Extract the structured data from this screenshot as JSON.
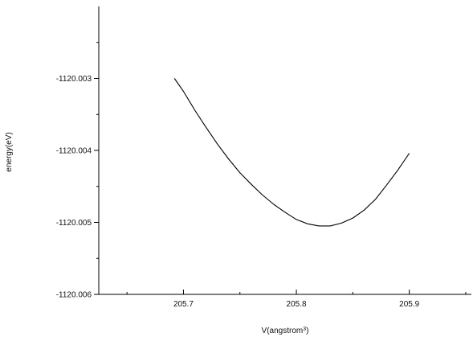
{
  "chart_data": {
    "type": "line",
    "xlabel": "V(angstrom",
    "xlabel_superscript": "3",
    "xlabel_suffix": ")",
    "ylabel": "energy(eV)",
    "xlim": [
      205.625,
      205.955
    ],
    "ylim": [
      -1120.006,
      -1120.002
    ],
    "x_ticks": [
      205.7,
      205.8,
      205.9
    ],
    "x_tick_labels": [
      "205.7",
      "205.8",
      "205.9"
    ],
    "y_ticks": [
      -1120.003,
      -1120.004,
      -1120.005,
      -1120.006
    ],
    "y_tick_labels": [
      "-1120.003",
      "-1120.004",
      "-1120.005",
      "-1120.006"
    ],
    "grid": false,
    "series": [
      {
        "color": "#000000",
        "x": [
          205.692,
          205.7,
          205.71,
          205.72,
          205.73,
          205.74,
          205.75,
          205.76,
          205.77,
          205.78,
          205.79,
          205.8,
          205.81,
          205.82,
          205.83,
          205.84,
          205.85,
          205.86,
          205.87,
          205.88,
          205.89,
          205.9
        ],
        "y": [
          -1120.003,
          -1120.00318,
          -1120.00344,
          -1120.00368,
          -1120.00391,
          -1120.00412,
          -1120.00431,
          -1120.00447,
          -1120.00462,
          -1120.00475,
          -1120.00486,
          -1120.00496,
          -1120.00502,
          -1120.00505,
          -1120.00505,
          -1120.00501,
          -1120.00494,
          -1120.00483,
          -1120.00468,
          -1120.00448,
          -1120.00427,
          -1120.00404
        ]
      }
    ]
  }
}
